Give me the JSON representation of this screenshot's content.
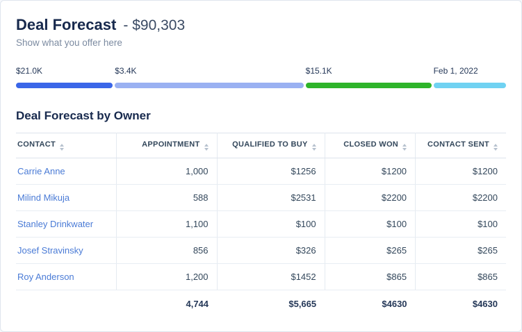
{
  "header": {
    "title": "Deal Forecast",
    "amount": "- $90,303",
    "subtitle": "Show what you offer here"
  },
  "progress": {
    "segments": [
      {
        "label": "$21.0K",
        "color": "#3a66e8",
        "weight": 20
      },
      {
        "label": "$3.4K",
        "color": "#9ab1f2",
        "weight": 39
      },
      {
        "label": "$15.1K",
        "color": "#2eb42a",
        "weight": 26
      },
      {
        "label": "Feb 1, 2022",
        "color": "#70d2f2",
        "weight": 15
      }
    ]
  },
  "table": {
    "title": "Deal Forecast by Owner",
    "columns": [
      "CONTACT",
      "APPOINTMENT",
      "QUALIFIED TO BUY",
      "CLOSED WON",
      "CONTACT SENT"
    ],
    "rows": [
      {
        "contact": "Carrie Anne",
        "appointment": "1,000",
        "qualified": "$1256",
        "closed": "$1200",
        "sent": "$1200"
      },
      {
        "contact": "Milind Mikuja",
        "appointment": "588",
        "qualified": "$2531",
        "closed": "$2200",
        "sent": "$2200"
      },
      {
        "contact": "Stanley Drinkwater",
        "appointment": "1,100",
        "qualified": "$100",
        "closed": "$100",
        "sent": "$100"
      },
      {
        "contact": "Josef Stravinsky",
        "appointment": "856",
        "qualified": "$326",
        "closed": "$265",
        "sent": "$265"
      },
      {
        "contact": "Roy Anderson",
        "appointment": "1,200",
        "qualified": "$1452",
        "closed": "$865",
        "sent": "$865"
      }
    ],
    "totals": {
      "appointment": "4,744",
      "qualified": "$5,665",
      "closed": "$4630",
      "sent": "$4630"
    }
  }
}
